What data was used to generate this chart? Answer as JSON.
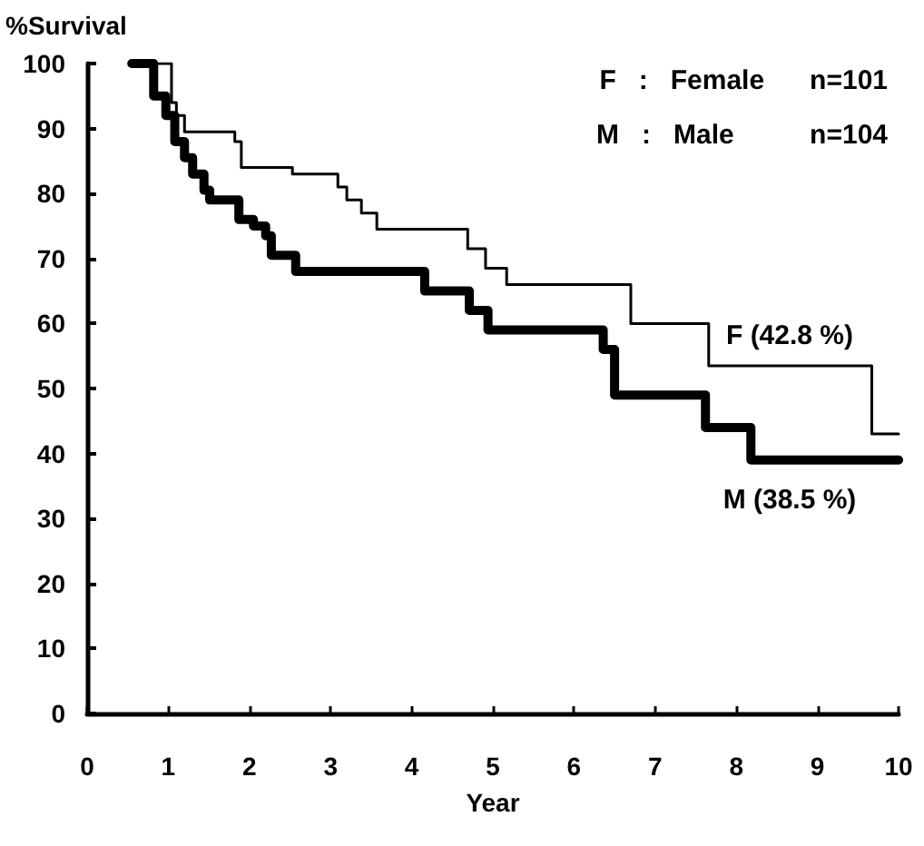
{
  "chart_data": {
    "type": "step",
    "xlabel": "Year",
    "ylabel": "%Survival",
    "xlim": [
      0,
      10
    ],
    "xticks": [
      0,
      1,
      2,
      3,
      4,
      5,
      6,
      7,
      8,
      9,
      10
    ],
    "ylim": [
      0,
      100
    ],
    "yticks": [
      0,
      10,
      20,
      30,
      40,
      50,
      60,
      70,
      80,
      90,
      100
    ],
    "grid": false,
    "legend": false,
    "marker": "none",
    "line_style": "solid",
    "annotations": [
      "F   :   Female      n=101",
      "M   :   Male          n=104"
    ],
    "series": [
      {
        "name": "F (42.8 %)",
        "color": "#000000",
        "x": [
          0.55,
          1.04,
          1.1,
          1.2,
          1.82,
          1.9,
          2.53,
          3.09,
          3.2,
          3.38,
          3.57,
          4.69,
          4.91,
          5.17,
          6.7,
          7.66,
          9.67,
          10
        ],
        "values": [
          100,
          94,
          92,
          89.5,
          88,
          84,
          83,
          81,
          79,
          77,
          74.5,
          71.5,
          68.5,
          66,
          60,
          53.5,
          43,
          43
        ]
      },
      {
        "name": "M (38.5 %)",
        "color": "#000000",
        "x": [
          0.55,
          0.82,
          0.97,
          1.08,
          1.2,
          1.3,
          1.44,
          1.51,
          1.87,
          2.05,
          2.2,
          2.27,
          2.57,
          4.16,
          4.71,
          4.94,
          6.36,
          6.5,
          7.62,
          8.18,
          10
        ],
        "values": [
          100,
          95,
          92,
          88,
          85.5,
          83,
          80.5,
          79,
          76,
          75,
          73.5,
          70.5,
          68,
          65,
          62,
          59,
          56,
          49,
          44,
          39,
          39
        ]
      }
    ]
  }
}
